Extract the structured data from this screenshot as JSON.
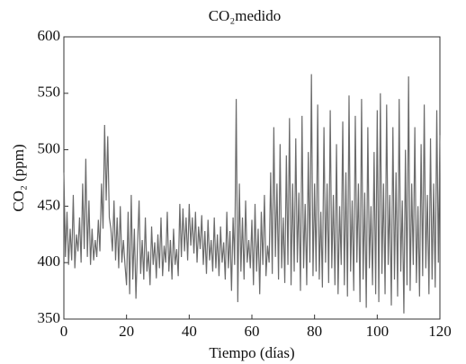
{
  "chart_data": {
    "type": "line",
    "title": "CO₂medido",
    "xlabel": "Tiempo (días)",
    "ylabel": "CO₂ (ppm)",
    "xlim": [
      0,
      120
    ],
    "xticks": [
      0,
      20,
      40,
      60,
      80,
      100,
      120
    ],
    "ylim": [
      350,
      600
    ],
    "yticks": [
      350,
      400,
      450,
      500,
      550,
      600
    ],
    "x": [
      0,
      0.5,
      1,
      1.5,
      2,
      2.5,
      3,
      3.5,
      4,
      4.5,
      5,
      5.5,
      6,
      6.5,
      7,
      7.5,
      8,
      8.5,
      9,
      9.5,
      10,
      10.5,
      11,
      11.5,
      12,
      12.5,
      13,
      13.5,
      14,
      14.5,
      15,
      15.5,
      16,
      16.5,
      17,
      17.5,
      18,
      18.5,
      19,
      19.5,
      20,
      20.5,
      21,
      21.5,
      22,
      22.5,
      23,
      23.5,
      24,
      24.5,
      25,
      25.5,
      26,
      26.5,
      27,
      27.5,
      28,
      28.5,
      29,
      29.5,
      30,
      30.5,
      31,
      31.5,
      32,
      32.5,
      33,
      33.5,
      34,
      34.5,
      35,
      35.5,
      36,
      36.5,
      37,
      37.5,
      38,
      38.5,
      39,
      39.5,
      40,
      40.5,
      41,
      41.5,
      42,
      42.5,
      43,
      43.5,
      44,
      44.5,
      45,
      45.5,
      46,
      46.5,
      47,
      47.5,
      48,
      48.5,
      49,
      49.5,
      50,
      50.5,
      51,
      51.5,
      52,
      52.5,
      53,
      53.5,
      54,
      54.5,
      55,
      55.5,
      56,
      56.5,
      57,
      57.5,
      58,
      58.5,
      59,
      59.5,
      60,
      60.5,
      61,
      61.5,
      62,
      62.5,
      63,
      63.5,
      64,
      64.5,
      65,
      65.5,
      66,
      66.5,
      67,
      67.5,
      68,
      68.5,
      69,
      69.5,
      70,
      70.5,
      71,
      71.5,
      72,
      72.5,
      73,
      73.5,
      74,
      74.5,
      75,
      75.5,
      76,
      76.5,
      77,
      77.5,
      78,
      78.5,
      79,
      79.5,
      80,
      80.5,
      81,
      81.5,
      82,
      82.5,
      83,
      83.5,
      84,
      84.5,
      85,
      85.5,
      86,
      86.5,
      87,
      87.5,
      88,
      88.5,
      89,
      89.5,
      90,
      90.5,
      91,
      91.5,
      92,
      92.5,
      93,
      93.5,
      94,
      94.5,
      95,
      95.5,
      96,
      96.5,
      97,
      97.5,
      98,
      98.5,
      99,
      99.5,
      100,
      100.5,
      101,
      101.5,
      102,
      102.5,
      103,
      103.5,
      104,
      104.5,
      105,
      105.5,
      106,
      106.5,
      107,
      107.5,
      108,
      108.5,
      109,
      109.5,
      110,
      110.5,
      111,
      111.5,
      112,
      112.5,
      113,
      113.5,
      114,
      114.5,
      115,
      115.5,
      116,
      116.5,
      117,
      117.5,
      118,
      118.5,
      119,
      119.5,
      120
    ],
    "series": [
      {
        "color": "#6b6b6b",
        "values": [
          480,
          405,
          445,
          398,
          430,
          402,
          460,
          395,
          425,
          410,
          440,
          400,
          470,
          412,
          492,
          405,
          455,
          398,
          430,
          402,
          420,
          405,
          438,
          410,
          470,
          430,
          522,
          455,
          512,
          440,
          430,
          410,
          455,
          402,
          440,
          395,
          450,
          400,
          420,
          398,
          380,
          445,
          372,
          460,
          385,
          430,
          368,
          415,
          455,
          390,
          420,
          385,
          440,
          392,
          410,
          380,
          432,
          398,
          418,
          386,
          425,
          395,
          440,
          388,
          415,
          400,
          445,
          392,
          420,
          385,
          430,
          398,
          412,
          388,
          452,
          405,
          448,
          410,
          440,
          402,
          452,
          415,
          440,
          408,
          445,
          400,
          432,
          412,
          442,
          398,
          428,
          390,
          438,
          402,
          420,
          392,
          440,
          395,
          425,
          388,
          432,
          400,
          418,
          385,
          445,
          395,
          428,
          375,
          440,
          398,
          545,
          365,
          470,
          392,
          440,
          385,
          455,
          400,
          420,
          395,
          438,
          380,
          452,
          392,
          430,
          372,
          445,
          398,
          460,
          388,
          415,
          400,
          480,
          390,
          520,
          405,
          470,
          385,
          505,
          395,
          440,
          382,
          495,
          398,
          528,
          380,
          470,
          392,
          510,
          400,
          462,
          375,
          530,
          395,
          452,
          380,
          498,
          400,
          567,
          388,
          470,
          392,
          540,
          385,
          445,
          378,
          520,
          400,
          470,
          382,
          535,
          395,
          460,
          380,
          505,
          372,
          450,
          398,
          525,
          380,
          480,
          370,
          548,
          392,
          455,
          375,
          530,
          400,
          470,
          365,
          545,
          385,
          462,
          360,
          520,
          395,
          450,
          380,
          498,
          372,
          535,
          365,
          550,
          390,
          470,
          372,
          540,
          398,
          460,
          362,
          520,
          385,
          480,
          370,
          545,
          392,
          455,
          355,
          500,
          380,
          565,
          375,
          470,
          398,
          520,
          382,
          450,
          370,
          505,
          388,
          540,
          395,
          460,
          372,
          510,
          385,
          470,
          378,
          535,
          400,
          513
        ]
      }
    ]
  }
}
